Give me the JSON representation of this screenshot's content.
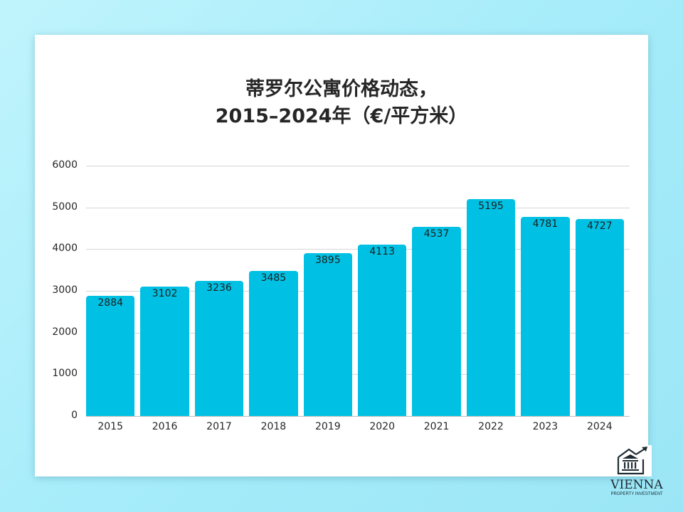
{
  "chart_data": {
    "type": "bar",
    "title": "蒂罗尔公寓价格动态，\n2015–2024年（€/平方米）",
    "title_lines": [
      "蒂罗尔公寓价格动态，",
      "2015–2024年（€/平方米）"
    ],
    "categories": [
      "2015",
      "2016",
      "2017",
      "2018",
      "2019",
      "2020",
      "2021",
      "2022",
      "2023",
      "2024"
    ],
    "values": [
      2884,
      3102,
      3236,
      3485,
      3895,
      4113,
      4537,
      5195,
      4781,
      4727
    ],
    "value_labels": [
      "2884",
      "3102",
      "3236",
      "3485",
      "3895",
      "4113",
      "4537",
      "5195",
      "4781",
      "4727"
    ],
    "xlabel": "",
    "ylabel": "",
    "ylim": [
      0,
      6000
    ],
    "yticks": [
      "0",
      "1000",
      "2000",
      "3000",
      "4000",
      "5000",
      "6000"
    ],
    "grid": true,
    "legend": null,
    "bar_color": "#00c1e4"
  },
  "brand": {
    "name": "VIENNA",
    "tagline": "PROPERTY INVESTMENT",
    "icon": "bank-building-with-rising-arrow-icon"
  }
}
